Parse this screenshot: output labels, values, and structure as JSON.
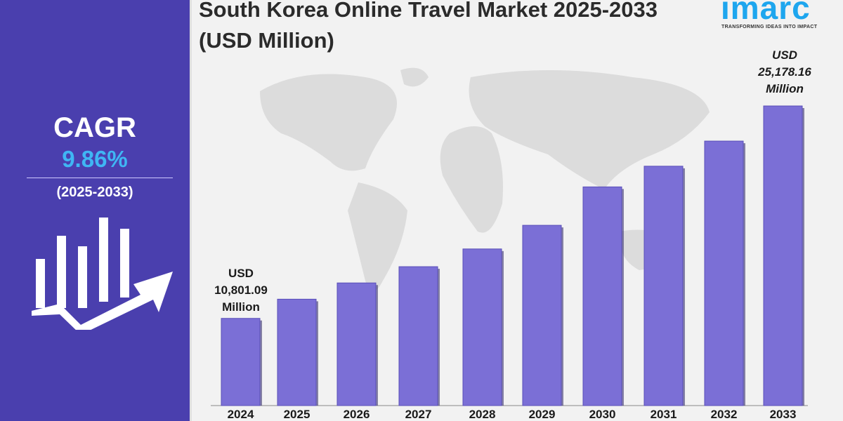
{
  "title": "South Korea Online Travel Market 2025-2033 (USD Million)",
  "logo": {
    "text": "imarc",
    "tagline": "TRANSFORMING IDEAS INTO IMPACT"
  },
  "sidebar": {
    "cagr_label": "CAGR",
    "cagr_value": "9.86%",
    "period": "(2025-2033)",
    "icon": "bar-chart-growth-arrow-icon"
  },
  "colors": {
    "sidebar": "#4a3fae",
    "bar": "#7b6fd6",
    "cagr_value": "#3fb6f4",
    "logo": "#1ea6ee"
  },
  "annotations": {
    "first": {
      "l1": "USD",
      "l2": "10,801.09",
      "l3": "Million"
    },
    "last": {
      "l1": "USD",
      "l2": "25,178.16",
      "l3": "Million"
    }
  },
  "chart_data": {
    "type": "bar",
    "title": "South Korea Online Travel Market 2025-2033 (USD Million)",
    "categories": [
      "2024",
      "2025",
      "2026",
      "2027",
      "2028",
      "2029",
      "2030",
      "2031",
      "2032",
      "2033"
    ],
    "values": [
      10801.09,
      12100,
      13200,
      14300,
      15500,
      17100,
      19700,
      21100,
      22800,
      25178.16
    ],
    "xlabel": "",
    "ylabel": "",
    "ylim": [
      4900,
      27600
    ],
    "grid": false,
    "legend": "none"
  }
}
